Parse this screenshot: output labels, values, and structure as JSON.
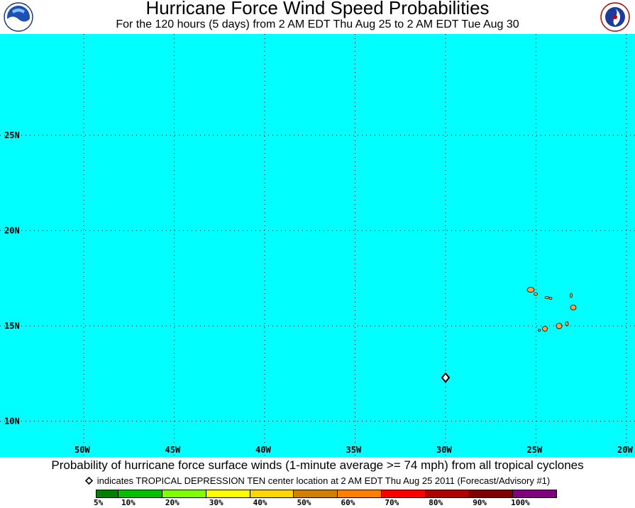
{
  "header": {
    "title": "Hurricane Force Wind Speed Probabilities",
    "subtitle": "For the 120 hours (5 days) from 2 AM EDT Thu Aug 25 to 2 AM EDT Tue Aug 30",
    "left_logo": "NOAA",
    "right_logo": "NATIONAL WEATHER SERVICE"
  },
  "map": {
    "background_color": "#00ffff",
    "land_color": "#ffa040",
    "lon_labels": [
      "50W",
      "45W",
      "40W",
      "35W",
      "30W",
      "25W",
      "20W"
    ],
    "lat_labels": [
      "25N",
      "20N",
      "15N",
      "10N"
    ],
    "storm_marker": {
      "icon": "diamond-icon",
      "lat": 12.3,
      "lon": -29.6
    }
  },
  "caption": "Probability of hurricane force surface winds (1-minute average >= 74 mph) from all tropical cyclones",
  "legend_note": "indicates TROPICAL DEPRESSION TEN center location at 2 AM EDT Thu Aug 25 2011 (Forecast/Advisory #1)",
  "colorbar": {
    "colors": [
      "#008000",
      "#00c000",
      "#80ff00",
      "#ffff00",
      "#ffd700",
      "#d08000",
      "#ff7f00",
      "#ff0000",
      "#b00000",
      "#800000",
      "#800080"
    ],
    "labels": [
      "5%",
      "10%",
      "20%",
      "30%",
      "40%",
      "50%",
      "60%",
      "70%",
      "80%",
      "90%",
      "100%"
    ]
  }
}
